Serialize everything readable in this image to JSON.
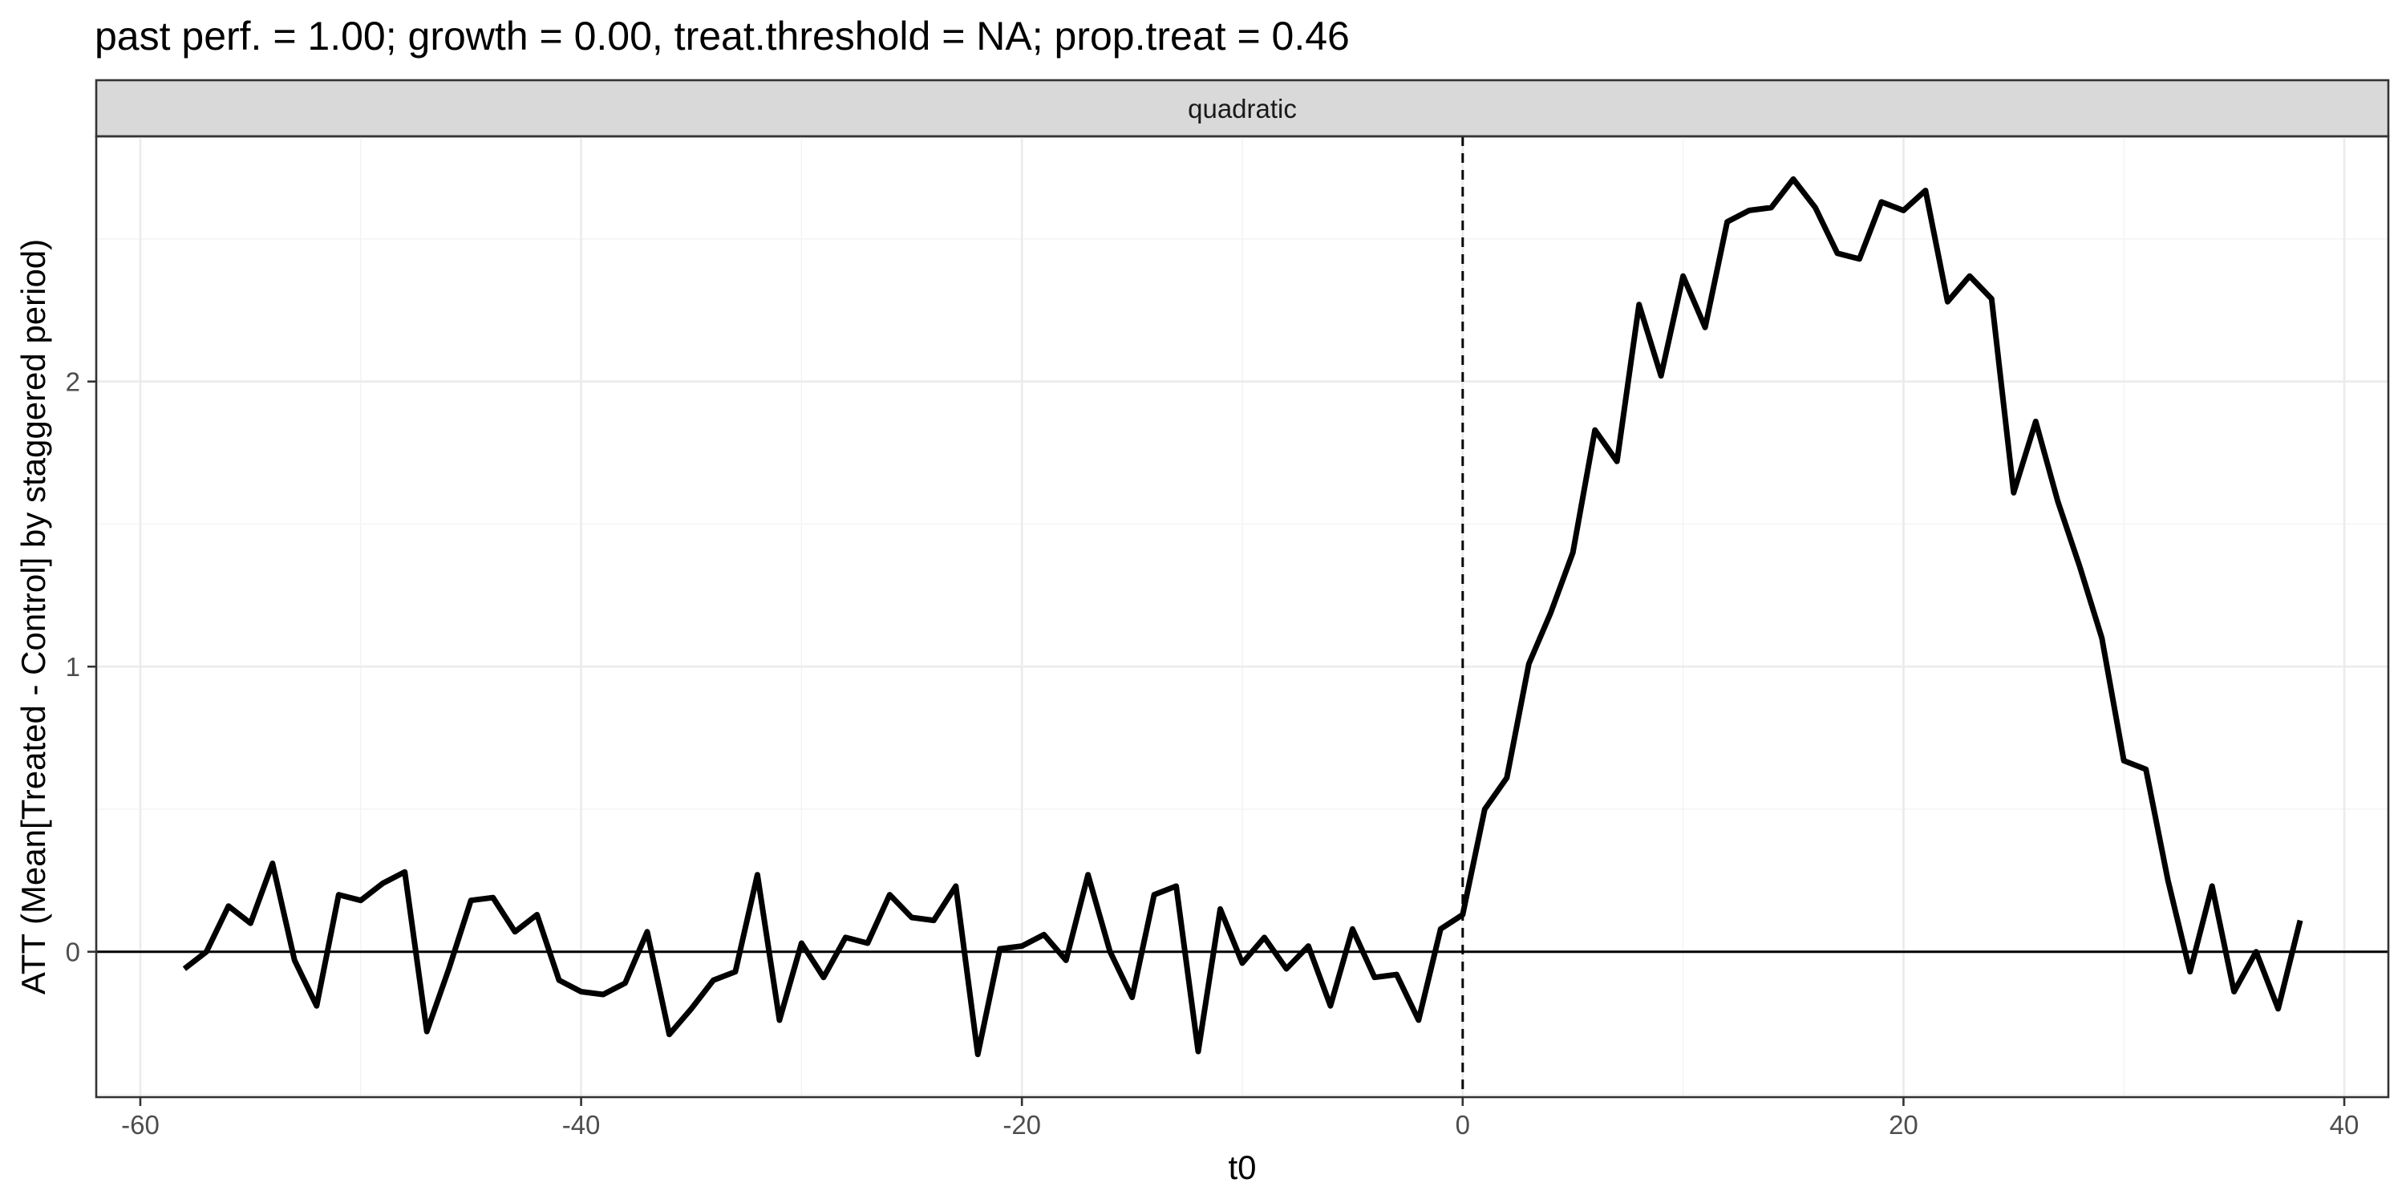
{
  "chart_data": {
    "type": "line",
    "title": "past perf. = 1.00; growth = 0.00,  treat.threshold = NA;  prop.treat = 0.46",
    "facet_label": "quadratic",
    "xlabel": "t0",
    "ylabel": "ATT (Mean[Treated - Control] by staggered period)",
    "xlim": [
      -62,
      42
    ],
    "ylim": [
      -0.51,
      2.86
    ],
    "x_ticks": [
      -60,
      -40,
      -20,
      0,
      20,
      40
    ],
    "x_tick_labels": [
      "-60",
      "-40",
      "-20",
      "0",
      "20",
      "40"
    ],
    "y_ticks": [
      0,
      1,
      2
    ],
    "y_tick_labels": [
      "0",
      "1",
      "2"
    ],
    "grid": true,
    "hline_y": 0,
    "vline_x": 0,
    "vline_style": "dashed",
    "line_color": "#000000",
    "series": [
      {
        "x": [
          -58,
          -57,
          -56,
          -55,
          -54,
          -53,
          -52,
          -51,
          -50,
          -49,
          -48,
          -47,
          -46,
          -45,
          -44,
          -43,
          -42,
          -41,
          -40,
          -39,
          -38,
          -37,
          -36,
          -35,
          -34,
          -33,
          -32,
          -31,
          -30,
          -29,
          -28,
          -27,
          -26,
          -25,
          -24,
          -23,
          -22,
          -21,
          -20,
          -19,
          -18,
          -17,
          -16,
          -15,
          -14,
          -13,
          -12,
          -11,
          -10,
          -9,
          -8,
          -7,
          -6,
          -5,
          -4,
          -3,
          -2,
          -1,
          0,
          1,
          2,
          3,
          4,
          5,
          6,
          7,
          8,
          9,
          10,
          11,
          12,
          13,
          14,
          15,
          16,
          17,
          18,
          19,
          20,
          21,
          22,
          23,
          24,
          25,
          26,
          27,
          28,
          29,
          30,
          31,
          32,
          33,
          34,
          35,
          36,
          37,
          38
        ],
        "values": [
          -0.06,
          0.0,
          0.16,
          0.1,
          0.31,
          -0.03,
          -0.19,
          0.2,
          0.18,
          0.24,
          0.28,
          -0.28,
          -0.06,
          0.18,
          0.19,
          0.07,
          0.13,
          -0.1,
          -0.14,
          -0.15,
          -0.11,
          0.07,
          -0.29,
          -0.2,
          -0.1,
          -0.07,
          0.27,
          -0.24,
          0.03,
          -0.09,
          0.05,
          0.03,
          0.2,
          0.12,
          0.11,
          0.23,
          -0.36,
          0.01,
          0.02,
          0.06,
          -0.03,
          0.27,
          0.0,
          -0.16,
          0.2,
          0.23,
          -0.35,
          0.15,
          -0.04,
          0.05,
          -0.06,
          0.02,
          -0.19,
          0.08,
          -0.09,
          -0.08,
          -0.24,
          0.08,
          0.13,
          0.5,
          0.61,
          1.01,
          1.19,
          1.4,
          1.83,
          1.72,
          2.27,
          2.02,
          2.37,
          2.19,
          2.56,
          2.6,
          2.61,
          2.71,
          2.61,
          2.45,
          2.43,
          2.63,
          2.6,
          2.67,
          2.28,
          2.37,
          2.29,
          1.61,
          1.86,
          1.58,
          1.35,
          1.1,
          0.67,
          0.64,
          0.25,
          -0.07,
          0.23,
          -0.14,
          0.0,
          -0.2,
          0.11
        ]
      }
    ]
  }
}
